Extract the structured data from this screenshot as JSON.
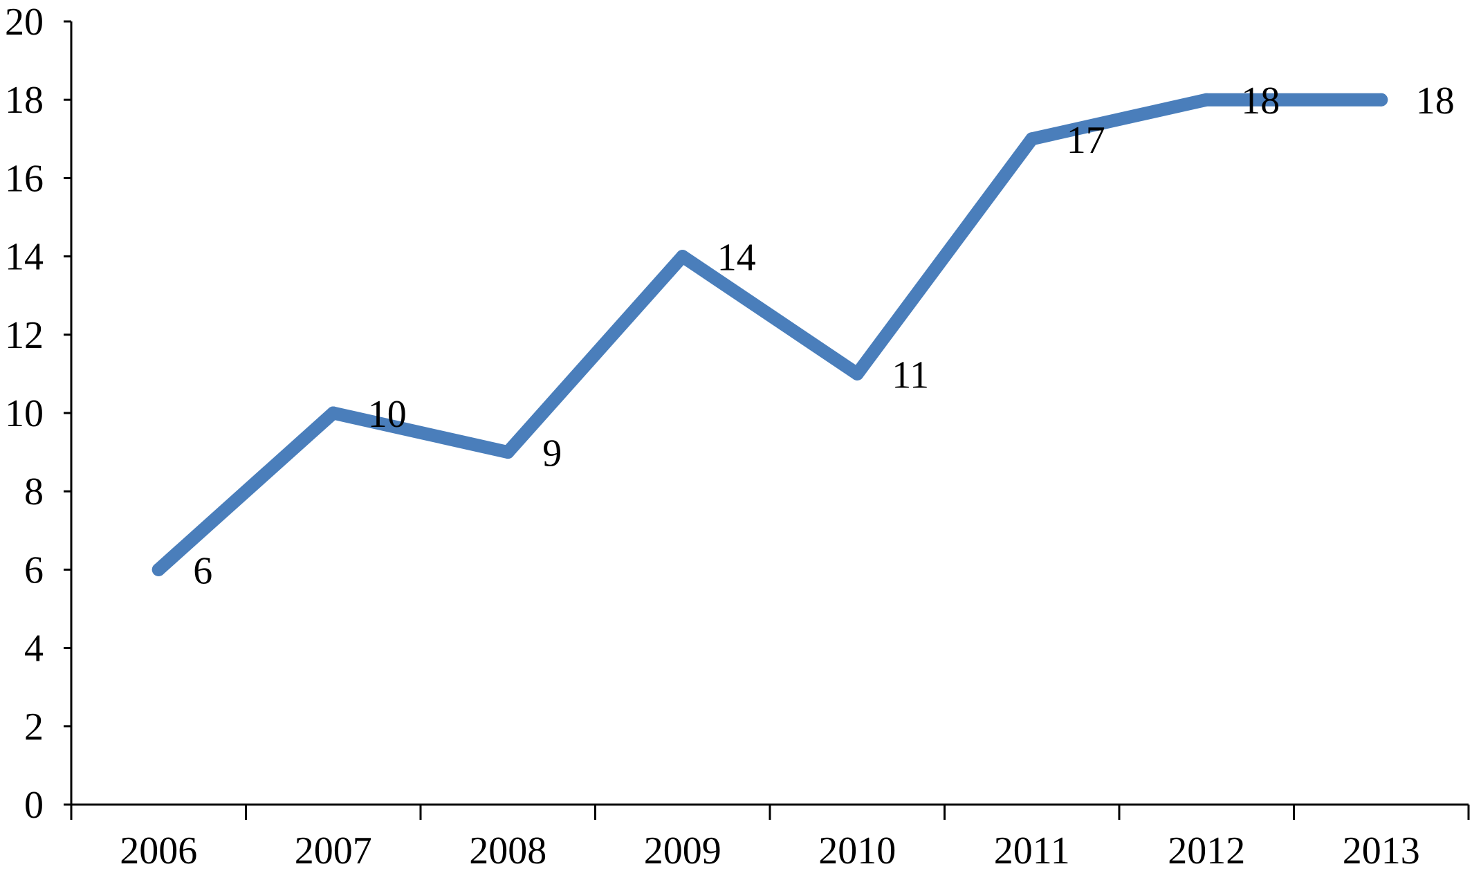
{
  "chart_data": {
    "type": "line",
    "categories": [
      "2006",
      "2007",
      "2008",
      "2009",
      "2010",
      "2011",
      "2012",
      "2013"
    ],
    "series": [
      {
        "values": [
          6,
          10,
          9,
          14,
          11,
          17,
          18,
          18
        ],
        "color": "#4A7EBB"
      }
    ],
    "data_labels": [
      "6",
      "10",
      "9",
      "14",
      "11",
      "17",
      "18",
      "18"
    ],
    "y_ticks": [
      "0",
      "2",
      "4",
      "6",
      "8",
      "10",
      "12",
      "14",
      "16",
      "18",
      "20"
    ],
    "ylim": [
      0,
      20
    ],
    "title": "",
    "xlabel": "",
    "ylabel": "",
    "grid": false,
    "legend": "none"
  }
}
